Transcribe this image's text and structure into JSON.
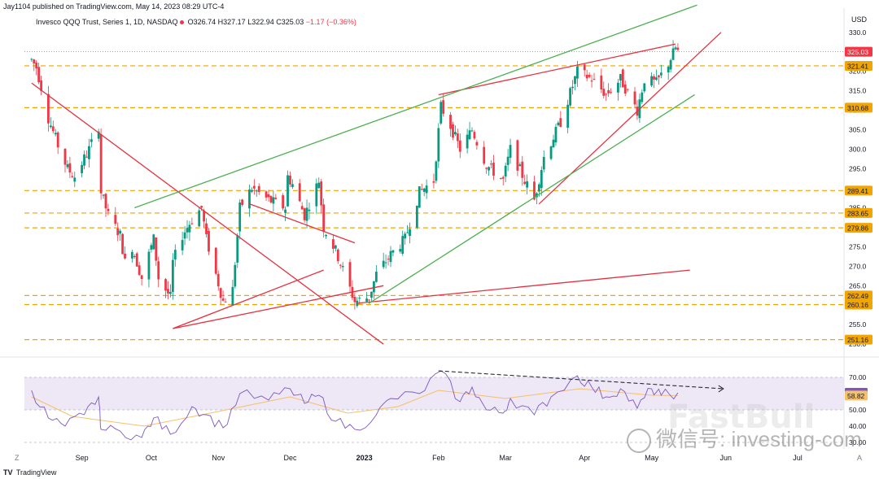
{
  "header": {
    "published": "Jay1104 published on TradingView.com, May 14, 2023 08:29 UTC-4"
  },
  "legend": {
    "symbol": "Invesco QQQ Trust, Series 1, 1D, NASDAQ",
    "open": "O326.74",
    "high": "H327.17",
    "low": "L322.94",
    "close": "C325.03",
    "change": "−1.17 (−0.36%)"
  },
  "footer": {
    "brand": "TradingView",
    "logo": "TV",
    "z_button": "Z",
    "a_button": "A"
  },
  "watermark": {
    "text": "微信号: investing-com",
    "overlay": "FastBull"
  },
  "colors": {
    "up": "#089981",
    "down": "#f23645",
    "trend_red": "#e5313f",
    "trend_green": "#4caf50",
    "level": "#f0a500",
    "rsi": "#7e57c2",
    "rsi_ma": "#f5c06a",
    "rsi_band": "#ede7f6"
  },
  "chart_data": [
    {
      "type": "candlestick",
      "symbol": "QQQ",
      "currency_label": "USD",
      "y_ticks": [
        250,
        255,
        260,
        265,
        270,
        275,
        280,
        285,
        290,
        295,
        300,
        305,
        310,
        315,
        320,
        325,
        330
      ],
      "ylim": [
        249,
        331
      ],
      "x_labels": [
        "Sep",
        "Oct",
        "Nov",
        "Dec",
        "2023",
        "Feb",
        "Mar",
        "Apr",
        "May",
        "Jun",
        "Jul"
      ],
      "price_labels": [
        {
          "label": "325.03",
          "value": 325.03,
          "style": "current"
        },
        {
          "label": "321.41",
          "value": 321.41,
          "style": "level"
        },
        {
          "label": "310.68",
          "value": 310.68,
          "style": "level"
        },
        {
          "label": "289.41",
          "value": 289.41,
          "style": "level"
        },
        {
          "label": "283.65",
          "value": 283.65,
          "style": "level"
        },
        {
          "label": "279.86",
          "value": 279.86,
          "style": "level"
        },
        {
          "label": "262.49",
          "value": 262.49,
          "style": "level"
        },
        {
          "label": "260.16",
          "value": 260.16,
          "style": "level"
        },
        {
          "label": "251.16",
          "value": 251.16,
          "style": "level"
        }
      ],
      "close_path": [
        [
          "2022-08-15",
          323
        ],
        [
          "2022-08-17",
          321
        ],
        [
          "2022-08-19",
          316
        ],
        [
          "2022-08-22",
          308
        ],
        [
          "2022-08-26",
          301
        ],
        [
          "2022-08-30",
          295
        ],
        [
          "2022-09-02",
          293
        ],
        [
          "2022-09-08",
          300
        ],
        [
          "2022-09-12",
          306
        ],
        [
          "2022-09-13",
          289
        ],
        [
          "2022-09-16",
          283
        ],
        [
          "2022-09-21",
          278
        ],
        [
          "2022-09-23",
          271
        ],
        [
          "2022-09-26",
          275
        ],
        [
          "2022-09-30",
          267
        ],
        [
          "2022-10-05",
          277
        ],
        [
          "2022-10-07",
          267
        ],
        [
          "2022-10-12",
          262
        ],
        [
          "2022-10-13",
          271
        ],
        [
          "2022-10-17",
          278
        ],
        [
          "2022-10-21",
          282
        ],
        [
          "2022-10-25",
          285
        ],
        [
          "2022-10-27",
          277
        ],
        [
          "2022-11-03",
          261
        ],
        [
          "2022-11-07",
          264
        ],
        [
          "2022-11-10",
          285
        ],
        [
          "2022-11-15",
          290
        ],
        [
          "2022-11-22",
          287
        ],
        [
          "2022-11-29",
          285
        ],
        [
          "2022-11-30",
          293
        ],
        [
          "2022-12-02",
          291
        ],
        [
          "2022-12-07",
          283
        ],
        [
          "2022-12-13",
          292
        ],
        [
          "2022-12-15",
          280
        ],
        [
          "2022-12-20",
          274
        ],
        [
          "2022-12-28",
          261
        ],
        [
          "2023-01-03",
          262
        ],
        [
          "2023-01-06",
          268
        ],
        [
          "2023-01-12",
          273
        ],
        [
          "2023-01-18",
          277
        ],
        [
          "2023-01-24",
          289
        ],
        [
          "2023-01-30",
          292
        ],
        [
          "2023-02-02",
          311
        ],
        [
          "2023-02-06",
          306
        ],
        [
          "2023-02-10",
          300
        ],
        [
          "2023-02-15",
          305
        ],
        [
          "2023-02-21",
          296
        ],
        [
          "2023-02-28",
          292
        ],
        [
          "2023-03-03",
          300
        ],
        [
          "2023-03-09",
          292
        ],
        [
          "2023-03-13",
          287
        ],
        [
          "2023-03-17",
          298
        ],
        [
          "2023-03-24",
          307
        ],
        [
          "2023-03-31",
          320
        ],
        [
          "2023-04-06",
          318
        ],
        [
          "2023-04-12",
          314
        ],
        [
          "2023-04-18",
          318
        ],
        [
          "2023-04-25",
          310
        ],
        [
          "2023-04-28",
          318
        ],
        [
          "2023-05-03",
          317
        ],
        [
          "2023-05-08",
          322
        ],
        [
          "2023-05-11",
          326
        ],
        [
          "2023-05-12",
          325.03
        ]
      ],
      "trendlines": [
        {
          "color": "red",
          "from": [
            "2022-08-15",
            317
          ],
          "to": [
            "2023-01-09",
            250
          ]
        },
        {
          "color": "red",
          "from": [
            "2022-10-13",
            254
          ],
          "to": [
            "2023-01-09",
            265
          ]
        },
        {
          "color": "red",
          "from": [
            "2022-10-13",
            254
          ],
          "to": [
            "2022-12-15",
            269
          ]
        },
        {
          "color": "red",
          "from": [
            "2022-12-29",
            260.5
          ],
          "to": [
            "2023-05-17",
            269
          ]
        },
        {
          "color": "red",
          "from": [
            "2023-03-15",
            286
          ],
          "to": [
            "2023-05-30",
            330
          ]
        },
        {
          "color": "red",
          "from": [
            "2023-02-01",
            314
          ],
          "to": [
            "2023-05-11",
            327
          ]
        },
        {
          "color": "green",
          "from": [
            "2022-09-27",
            285
          ],
          "to": [
            "2023-05-20",
            337
          ]
        },
        {
          "color": "green",
          "from": [
            "2023-01-03",
            260.5
          ],
          "to": [
            "2023-05-19",
            314
          ]
        },
        {
          "color": "red",
          "from": [
            "2022-11-14",
            286
          ],
          "to": [
            "2022-12-28",
            276
          ]
        }
      ]
    },
    {
      "type": "line",
      "indicator": "RSI",
      "y_ticks": [
        30,
        40,
        50,
        70
      ],
      "ylim": [
        28,
        76
      ],
      "band": [
        50,
        70
      ],
      "value_labels": [
        {
          "label": "60.49",
          "value": 60.49,
          "style": "rsi"
        },
        {
          "label": "58.82",
          "value": 58.82,
          "style": "rsi_ma"
        }
      ],
      "rsi": [
        [
          "2022-08-15",
          62
        ],
        [
          "2022-08-22",
          45
        ],
        [
          "2022-08-29",
          40
        ],
        [
          "2022-09-06",
          47
        ],
        [
          "2022-09-12",
          58
        ],
        [
          "2022-09-13",
          38
        ],
        [
          "2022-09-21",
          37
        ],
        [
          "2022-09-30",
          33
        ],
        [
          "2022-10-05",
          45
        ],
        [
          "2022-10-12",
          35
        ],
        [
          "2022-10-21",
          52
        ],
        [
          "2022-10-27",
          47
        ],
        [
          "2022-11-03",
          39
        ],
        [
          "2022-11-10",
          60
        ],
        [
          "2022-11-22",
          56
        ],
        [
          "2022-12-01",
          63
        ],
        [
          "2022-12-07",
          54
        ],
        [
          "2022-12-13",
          59
        ],
        [
          "2022-12-20",
          43
        ],
        [
          "2022-12-28",
          38
        ],
        [
          "2023-01-06",
          47
        ],
        [
          "2023-01-12",
          57
        ],
        [
          "2023-01-24",
          60
        ],
        [
          "2023-02-02",
          74
        ],
        [
          "2023-02-10",
          55
        ],
        [
          "2023-02-15",
          64
        ],
        [
          "2023-02-21",
          50
        ],
        [
          "2023-02-28",
          48
        ],
        [
          "2023-03-03",
          57
        ],
        [
          "2023-03-13",
          47
        ],
        [
          "2023-03-20",
          58
        ],
        [
          "2023-03-31",
          71
        ],
        [
          "2023-04-06",
          64
        ],
        [
          "2023-04-12",
          58
        ],
        [
          "2023-04-18",
          63
        ],
        [
          "2023-04-25",
          51
        ],
        [
          "2023-05-01",
          63
        ],
        [
          "2023-05-05",
          59
        ],
        [
          "2023-05-12",
          60.49
        ]
      ],
      "rsi_ma": [
        [
          "2022-08-15",
          58
        ],
        [
          "2022-09-01",
          46
        ],
        [
          "2022-10-01",
          40
        ],
        [
          "2022-11-01",
          49
        ],
        [
          "2022-12-01",
          58
        ],
        [
          "2022-12-25",
          48
        ],
        [
          "2023-01-15",
          52
        ],
        [
          "2023-02-01",
          62
        ],
        [
          "2023-03-01",
          57
        ],
        [
          "2023-04-01",
          63
        ],
        [
          "2023-05-01",
          59
        ],
        [
          "2023-05-12",
          58.82
        ]
      ],
      "divergence_arrow": {
        "from": [
          "2023-02-01",
          74
        ],
        "to": [
          "2023-05-31",
          63
        ]
      }
    }
  ]
}
